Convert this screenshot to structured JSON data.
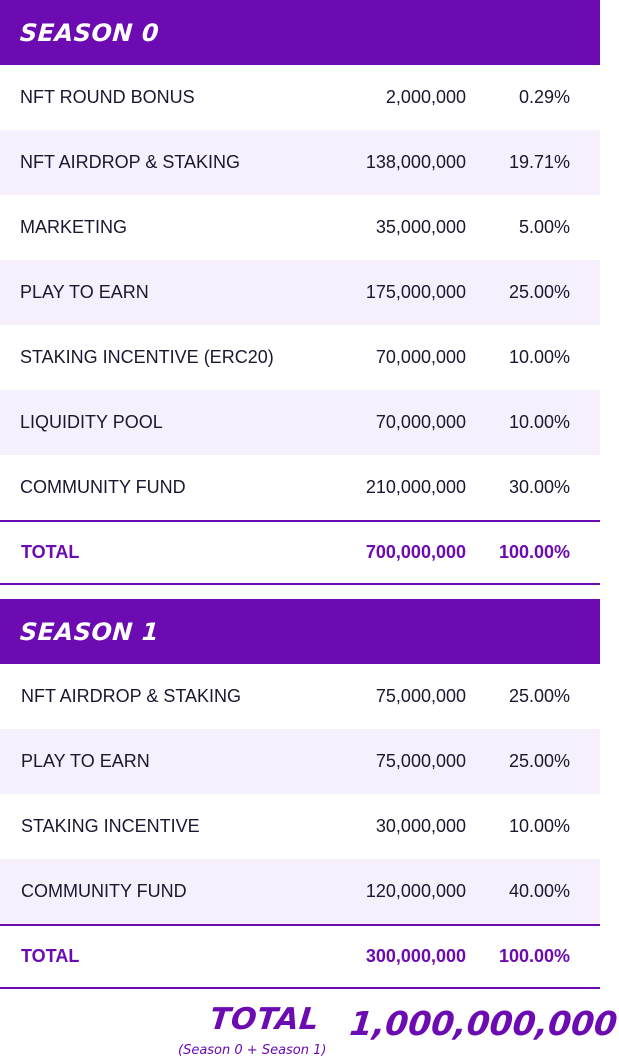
{
  "colors": {
    "accent": "#6b0bb1",
    "row_alt": "#f5f0fb",
    "text": "#1d1630"
  },
  "season0": {
    "title": "SEASON 0",
    "rows": [
      {
        "label": "NFT ROUND BONUS",
        "amount": "2,000,000",
        "pct": "0.29%"
      },
      {
        "label": "NFT AIRDROP & STAKING",
        "amount": "138,000,000",
        "pct": "19.71%"
      },
      {
        "label": "MARKETING",
        "amount": "35,000,000",
        "pct": "5.00%"
      },
      {
        "label": "PLAY TO EARN",
        "amount": "175,000,000",
        "pct": "25.00%"
      },
      {
        "label": "STAKING INCENTIVE (ERC20)",
        "amount": "70,000,000",
        "pct": "10.00%"
      },
      {
        "label": "LIQUIDITY POOL",
        "amount": "70,000,000",
        "pct": "10.00%"
      },
      {
        "label": "COMMUNITY FUND",
        "amount": "210,000,000",
        "pct": "30.00%"
      }
    ],
    "total": {
      "label": "TOTAL",
      "amount": "700,000,000",
      "pct": "100.00%"
    }
  },
  "season1": {
    "title": "SEASON 1",
    "rows": [
      {
        "label": "NFT AIRDROP & STAKING",
        "amount": "75,000,000",
        "pct": "25.00%"
      },
      {
        "label": "PLAY TO EARN",
        "amount": "75,000,000",
        "pct": "25.00%"
      },
      {
        "label": "STAKING INCENTIVE",
        "amount": "30,000,000",
        "pct": "10.00%"
      },
      {
        "label": "COMMUNITY FUND",
        "amount": "120,000,000",
        "pct": "40.00%"
      }
    ],
    "total": {
      "label": "TOTAL",
      "amount": "300,000,000",
      "pct": "100.00%"
    }
  },
  "grand_total": {
    "label": "TOTAL",
    "sub": "(Season 0 + Season 1)",
    "value": "1,000,000,000"
  }
}
